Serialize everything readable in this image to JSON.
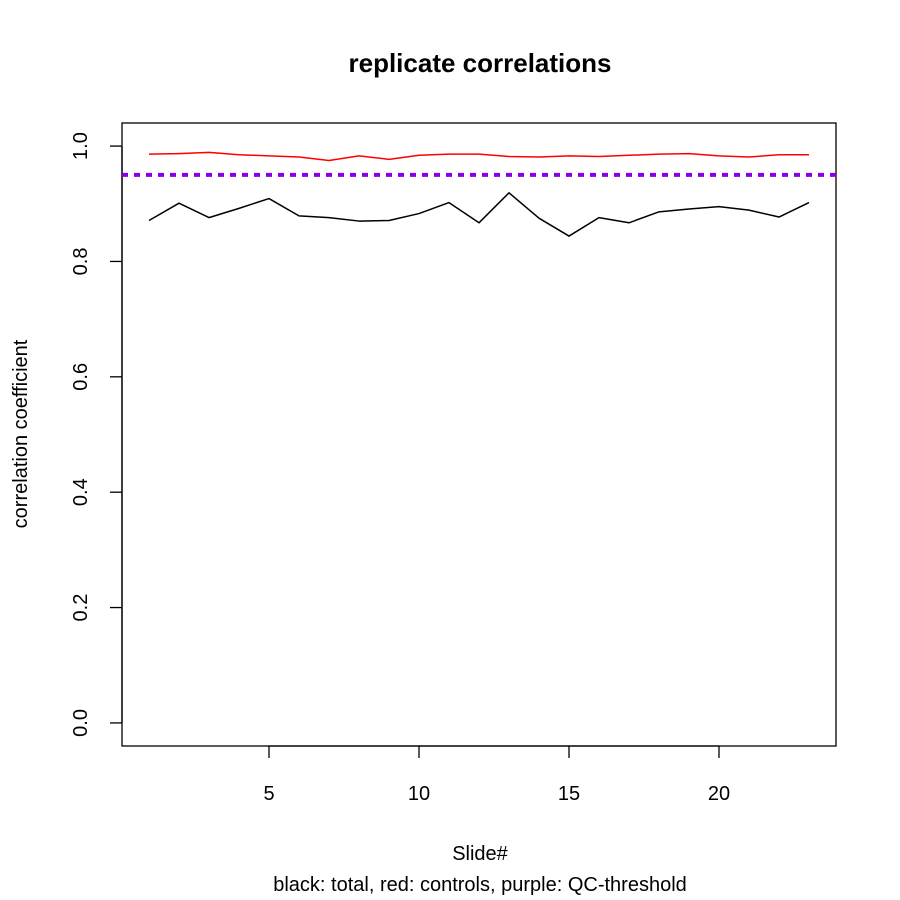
{
  "chart_data": {
    "type": "line",
    "title": "replicate correlations",
    "xlabel": "Slide#",
    "ylabel": "correlation coefficient",
    "subtitle": "black: total, red: controls, purple: QC-threshold",
    "xlim": [
      0.1,
      23.9
    ],
    "ylim": [
      -0.04,
      1.04
    ],
    "x_ticks": [
      5,
      10,
      15,
      20
    ],
    "y_ticks": [
      0.0,
      0.2,
      0.4,
      0.6,
      0.8,
      1.0
    ],
    "x_tick_labels": [
      "5",
      "10",
      "15",
      "20"
    ],
    "y_tick_labels": [
      "0.0",
      "0.2",
      "0.4",
      "0.6",
      "0.8",
      "1.0"
    ],
    "grid": false,
    "x": [
      1,
      2,
      3,
      4,
      5,
      6,
      7,
      8,
      9,
      10,
      11,
      12,
      13,
      14,
      15,
      16,
      17,
      18,
      19,
      20,
      21,
      22,
      23
    ],
    "series": [
      {
        "color": "#000000",
        "values": [
          0.871,
          0.901,
          0.876,
          0.892,
          0.909,
          0.879,
          0.876,
          0.87,
          0.871,
          0.883,
          0.902,
          0.867,
          0.919,
          0.875,
          0.844,
          0.876,
          0.867,
          0.886,
          0.891,
          0.895,
          0.889,
          0.877,
          0.902
        ]
      },
      {
        "color": "#ff0000",
        "values": [
          0.986,
          0.987,
          0.989,
          0.985,
          0.983,
          0.981,
          0.975,
          0.983,
          0.977,
          0.984,
          0.986,
          0.986,
          0.982,
          0.981,
          0.983,
          0.982,
          0.984,
          0.986,
          0.987,
          0.983,
          0.981,
          0.985,
          0.985
        ]
      }
    ],
    "threshold": {
      "value": 0.95,
      "color": "#8a00e6",
      "style": "dotted"
    }
  }
}
